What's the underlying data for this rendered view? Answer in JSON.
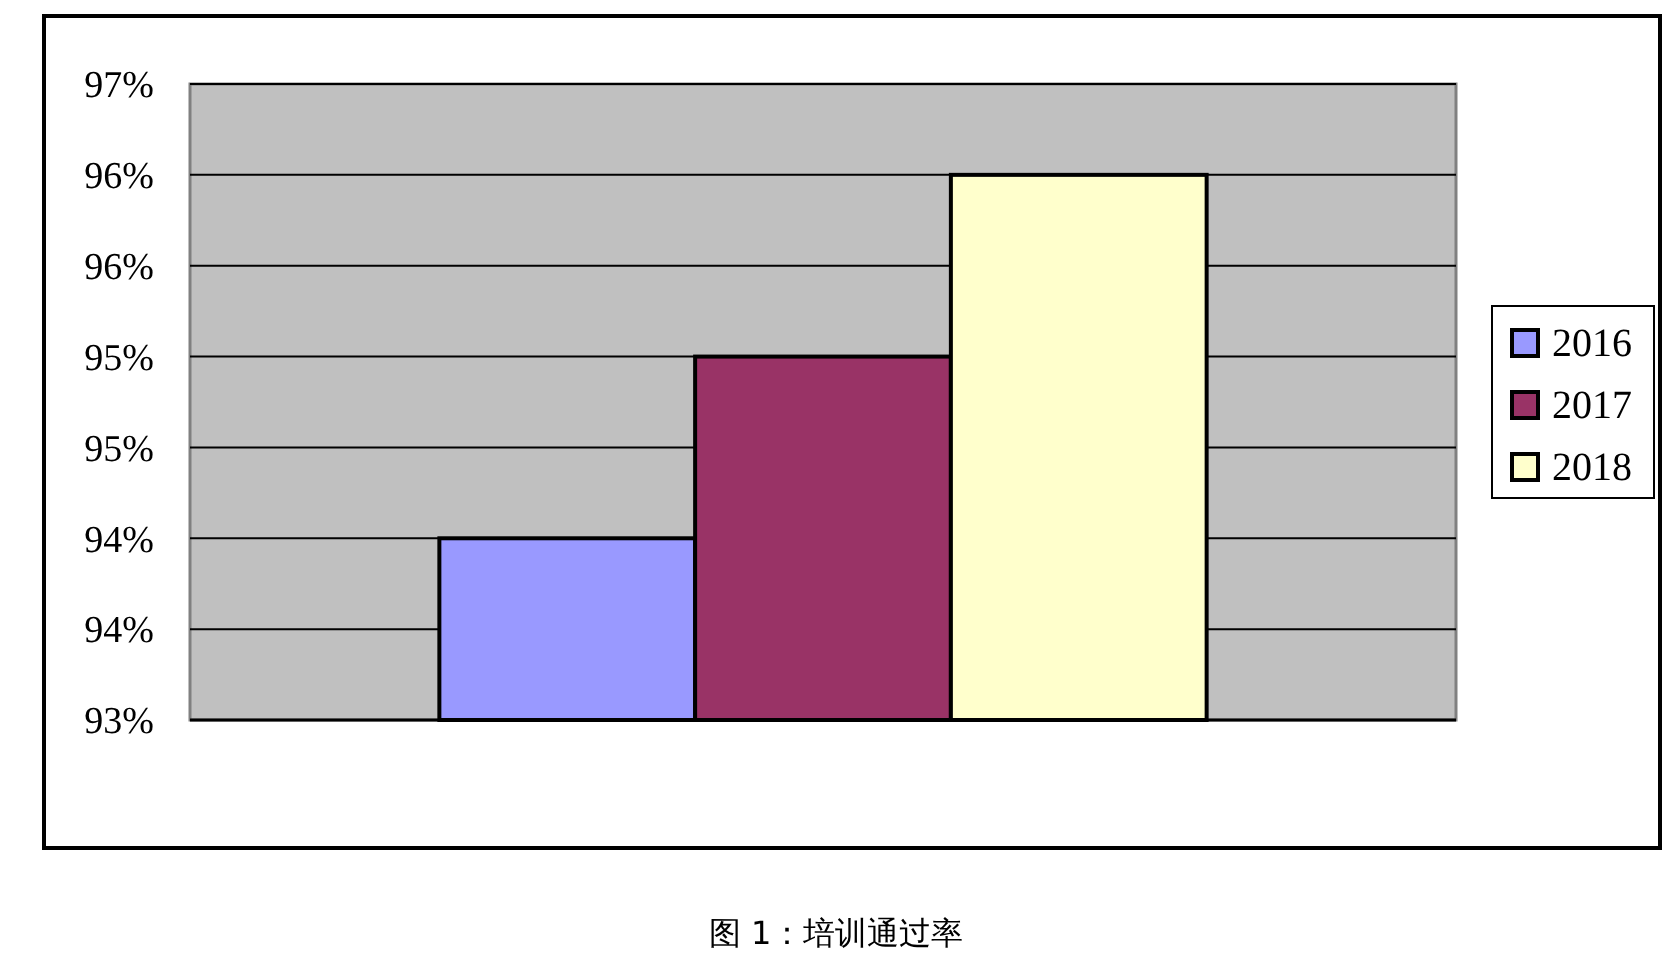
{
  "chart_data": {
    "type": "bar",
    "title": "图 1：培训通过率",
    "categories": [
      null
    ],
    "series": [
      {
        "name": "2016",
        "color": "#9999ff",
        "values": [
          94.0
        ]
      },
      {
        "name": "2017",
        "color": "#993366",
        "values": [
          95.0
        ]
      },
      {
        "name": "2018",
        "color": "#ffffcc",
        "values": [
          96.0
        ]
      }
    ],
    "ylim": [
      93,
      96.5
    ],
    "yticks": [
      {
        "value": 93,
        "label": "93%"
      },
      {
        "value": 93.5,
        "label": "94%"
      },
      {
        "value": 94,
        "label": "94%"
      },
      {
        "value": 94.5,
        "label": "95%"
      },
      {
        "value": 95,
        "label": "95%"
      },
      {
        "value": 95.5,
        "label": "96%"
      },
      {
        "value": 96,
        "label": "96%"
      },
      {
        "value": 96.5,
        "label": "97%"
      }
    ],
    "grid": "y",
    "legend": "right"
  }
}
